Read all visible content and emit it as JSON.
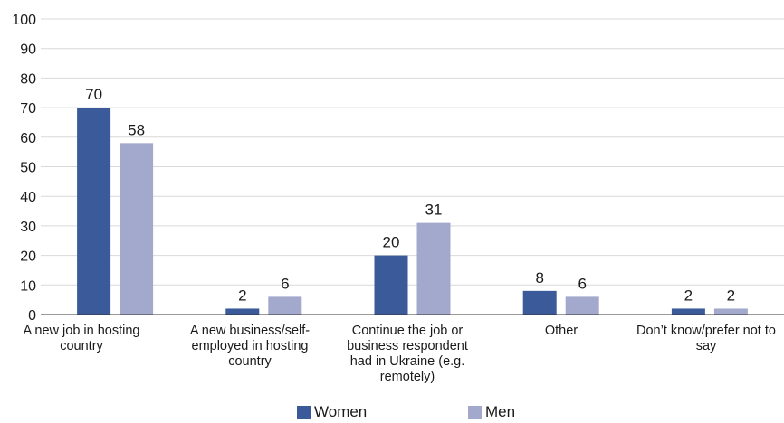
{
  "chart_data": {
    "type": "bar",
    "categories": [
      "A new job in hosting country",
      "A new business/self-employed in hosting country",
      "Continue the job or business respondent had in Ukraine (e.g. remotely)",
      "Other",
      "Don’t know/prefer not to say"
    ],
    "series": [
      {
        "name": "Women",
        "values": [
          70,
          2,
          20,
          8,
          2
        ],
        "color": "#3a5a99"
      },
      {
        "name": "Men",
        "values": [
          58,
          6,
          31,
          6,
          2
        ],
        "color": "#a3a8cd"
      }
    ],
    "ylim": [
      0,
      100
    ],
    "yticks": [
      0,
      10,
      20,
      30,
      40,
      50,
      60,
      70,
      80,
      90,
      100
    ],
    "grid": true,
    "legend": "bottom-center",
    "title": "",
    "xlabel": "",
    "ylabel": ""
  },
  "legend": {
    "women_label": "Women",
    "men_label": "Men"
  },
  "labels": {
    "cat0": "A new job in hosting country",
    "cat1": "A new business/self-employed in hosting country",
    "cat2": "Continue the job or business respondent had in Ukraine (e.g. remotely)",
    "cat3": "Other",
    "cat4": "Don’t know/prefer not to say"
  }
}
